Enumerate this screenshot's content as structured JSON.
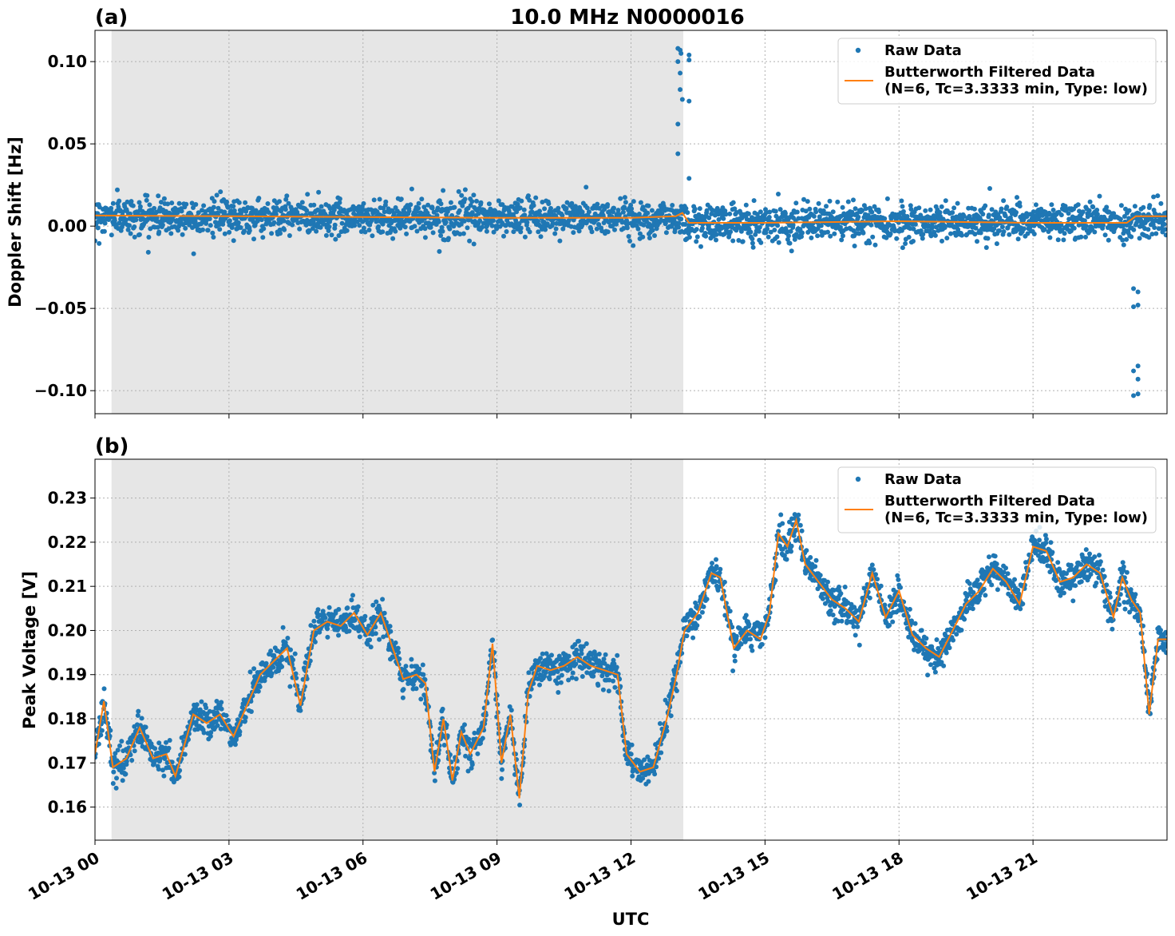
{
  "title": "10.0 MHz N0000016",
  "xlabel": "UTC",
  "colors": {
    "raw": "#1f77b4",
    "filtered": "#ff7f0e",
    "shade": "#e6e6e6"
  },
  "x_ticks": [
    "10-13 00",
    "10-13 03",
    "10-13 06",
    "10-13 09",
    "10-13 12",
    "10-13 15",
    "10-13 18",
    "10-13 21"
  ],
  "legend": {
    "raw": "Raw Data",
    "filtered_line1": "Butterworth Filtered Data",
    "filtered_line2": "(N=6, Tc=3.3333 min, Type: low)"
  },
  "chart_data": [
    {
      "type": "scatter",
      "panel_label": "(a)",
      "title": "10.0 MHz N0000016",
      "xlabel": "UTC",
      "ylabel": "Doppler Shift [Hz]",
      "xlim_hours": [
        0,
        24
      ],
      "ylim": [
        -0.114,
        0.119
      ],
      "yticks": [
        0.1,
        0.05,
        0.0,
        -0.05,
        -0.1
      ],
      "ytick_labels": [
        "0.10",
        "0.05",
        "0.00",
        "−0.05",
        "−0.10"
      ],
      "shaded_region_hours": [
        0.37,
        13.17
      ],
      "grid": true,
      "legend_position": "top-right",
      "series": [
        {
          "name": "Raw Data",
          "style": "markers",
          "band_center_hours": [
            0,
            13.17,
            13.17,
            24
          ],
          "band_center_values": [
            0.006,
            0.005,
            0.002,
            0.003
          ],
          "band_spread": 0.012,
          "outliers": [
            {
              "x": 13.05,
              "y": 0.108
            },
            {
              "x": 13.1,
              "y": 0.107
            },
            {
              "x": 13.12,
              "y": 0.105
            },
            {
              "x": 13.05,
              "y": 0.1
            },
            {
              "x": 13.3,
              "y": 0.104
            },
            {
              "x": 13.3,
              "y": 0.101
            },
            {
              "x": 13.1,
              "y": 0.093
            },
            {
              "x": 13.1,
              "y": 0.083
            },
            {
              "x": 13.15,
              "y": 0.077
            },
            {
              "x": 13.3,
              "y": 0.076
            },
            {
              "x": 13.05,
              "y": 0.062
            },
            {
              "x": 13.05,
              "y": 0.044
            },
            {
              "x": 13.3,
              "y": 0.029
            },
            {
              "x": 23.25,
              "y": -0.038
            },
            {
              "x": 23.35,
              "y": -0.04
            },
            {
              "x": 23.25,
              "y": -0.049
            },
            {
              "x": 23.35,
              "y": -0.048
            },
            {
              "x": 23.25,
              "y": -0.088
            },
            {
              "x": 23.35,
              "y": -0.085
            },
            {
              "x": 23.35,
              "y": -0.093
            },
            {
              "x": 23.25,
              "y": -0.103
            },
            {
              "x": 23.35,
              "y": -0.102
            }
          ]
        },
        {
          "name": "Butterworth Filtered Data\n(N=6, Tc=3.3333 min, Type: low)",
          "style": "line",
          "x_hours": [
            0,
            3,
            6,
            9,
            12,
            13.0,
            13.15,
            13.3,
            15,
            18,
            21,
            23.1,
            23.3,
            24
          ],
          "values": [
            0.0065,
            0.006,
            0.0055,
            0.005,
            0.005,
            0.006,
            0.008,
            0.002,
            0.002,
            0.003,
            0.002,
            0.002,
            0.006,
            0.006
          ]
        }
      ]
    },
    {
      "type": "scatter",
      "panel_label": "(b)",
      "xlabel": "UTC",
      "ylabel": "Peak Voltage [V]",
      "xlim_hours": [
        0,
        24
      ],
      "ylim": [
        0.1525,
        0.2388
      ],
      "yticks": [
        0.23,
        0.22,
        0.21,
        0.2,
        0.19,
        0.18,
        0.17,
        0.16
      ],
      "ytick_labels": [
        "0.23",
        "0.22",
        "0.21",
        "0.20",
        "0.19",
        "0.18",
        "0.17",
        "0.16"
      ],
      "shaded_region_hours": [
        0.37,
        13.17
      ],
      "grid": true,
      "legend_position": "top-right",
      "series": [
        {
          "name": "Raw Data",
          "style": "markers",
          "band_spread": 0.004
        },
        {
          "name": "Butterworth Filtered Data\n(N=6, Tc=3.3333 min, Type: low)",
          "style": "line",
          "x_hours": [
            0,
            0.2,
            0.4,
            0.7,
            1.0,
            1.3,
            1.6,
            1.8,
            2.2,
            2.5,
            2.8,
            3.1,
            3.4,
            3.7,
            4.0,
            4.3,
            4.6,
            4.9,
            5.2,
            5.5,
            5.8,
            6.1,
            6.4,
            6.6,
            6.9,
            7.2,
            7.4,
            7.6,
            7.8,
            8.0,
            8.2,
            8.4,
            8.7,
            8.9,
            9.1,
            9.3,
            9.5,
            9.7,
            9.9,
            10.2,
            10.5,
            10.8,
            11.1,
            11.4,
            11.7,
            11.9,
            12.2,
            12.5,
            12.8,
            13.0,
            13.2,
            13.5,
            13.8,
            14.0,
            14.3,
            14.6,
            14.9,
            15.1,
            15.3,
            15.5,
            15.7,
            15.9,
            16.2,
            16.5,
            16.8,
            17.1,
            17.4,
            17.7,
            18.0,
            18.3,
            18.6,
            18.9,
            19.2,
            19.5,
            19.8,
            20.1,
            20.4,
            20.7,
            21.0,
            21.3,
            21.6,
            21.9,
            22.2,
            22.5,
            22.8,
            23.0,
            23.2,
            23.4,
            23.6,
            23.8,
            24.0
          ],
          "values": [
            0.172,
            0.184,
            0.169,
            0.171,
            0.178,
            0.171,
            0.172,
            0.167,
            0.181,
            0.179,
            0.181,
            0.176,
            0.183,
            0.19,
            0.193,
            0.196,
            0.183,
            0.2,
            0.202,
            0.201,
            0.204,
            0.199,
            0.204,
            0.198,
            0.189,
            0.19,
            0.188,
            0.168,
            0.18,
            0.166,
            0.177,
            0.172,
            0.178,
            0.197,
            0.17,
            0.181,
            0.162,
            0.186,
            0.192,
            0.191,
            0.192,
            0.194,
            0.192,
            0.191,
            0.19,
            0.172,
            0.168,
            0.169,
            0.18,
            0.189,
            0.2,
            0.204,
            0.213,
            0.212,
            0.196,
            0.2,
            0.198,
            0.204,
            0.222,
            0.219,
            0.225,
            0.215,
            0.211,
            0.207,
            0.205,
            0.202,
            0.213,
            0.203,
            0.209,
            0.199,
            0.196,
            0.194,
            0.2,
            0.206,
            0.209,
            0.214,
            0.211,
            0.206,
            0.219,
            0.218,
            0.211,
            0.212,
            0.215,
            0.213,
            0.203,
            0.212,
            0.207,
            0.204,
            0.181,
            0.198,
            0.198
          ]
        }
      ]
    }
  ]
}
